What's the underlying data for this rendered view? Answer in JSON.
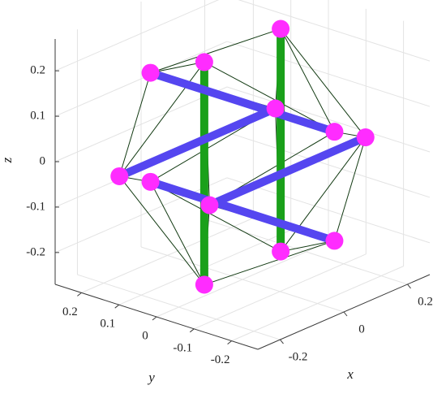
{
  "chart_data": {
    "type": "tensegrity3d",
    "xlabel": "x",
    "ylabel": "y",
    "zlabel": "z",
    "xlim": [
      -0.27,
      0.27
    ],
    "ylim": [
      -0.27,
      0.27
    ],
    "zlim": [
      -0.27,
      0.27
    ],
    "xticks": [
      -0.2,
      0,
      0.2
    ],
    "yticks": [
      -0.2,
      -0.1,
      0,
      0.1,
      0.2
    ],
    "zticks": [
      -0.2,
      -0.1,
      0,
      0.1,
      0.2
    ],
    "grid": true,
    "node_color": "#ff2cff",
    "string_color": "#123a12",
    "bars": [
      {
        "color": "#1aa01a",
        "x": [
          -0.12,
          -0.12
        ],
        "y": [
          0,
          0
        ],
        "z": [
          0.245,
          -0.245
        ]
      },
      {
        "color": "#1aa01a",
        "x": [
          0.12,
          0.12
        ],
        "y": [
          0,
          0
        ],
        "z": [
          0.245,
          -0.245
        ]
      },
      {
        "color": "#5546f0",
        "x": [
          -0.245,
          0.245
        ],
        "y": [
          0.12,
          0.12
        ],
        "z": [
          0,
          0
        ]
      },
      {
        "color": "#5546f0",
        "x": [
          -0.245,
          0.245
        ],
        "y": [
          -0.12,
          -0.12
        ],
        "z": [
          0,
          0
        ]
      },
      {
        "color": "#5546f0",
        "x": [
          0,
          0
        ],
        "y": [
          0.245,
          -0.245
        ],
        "z": [
          0.12,
          0.12
        ]
      },
      {
        "color": "#5546f0",
        "x": [
          0,
          0
        ],
        "y": [
          0.245,
          -0.245
        ],
        "z": [
          -0.12,
          -0.12
        ]
      }
    ]
  }
}
